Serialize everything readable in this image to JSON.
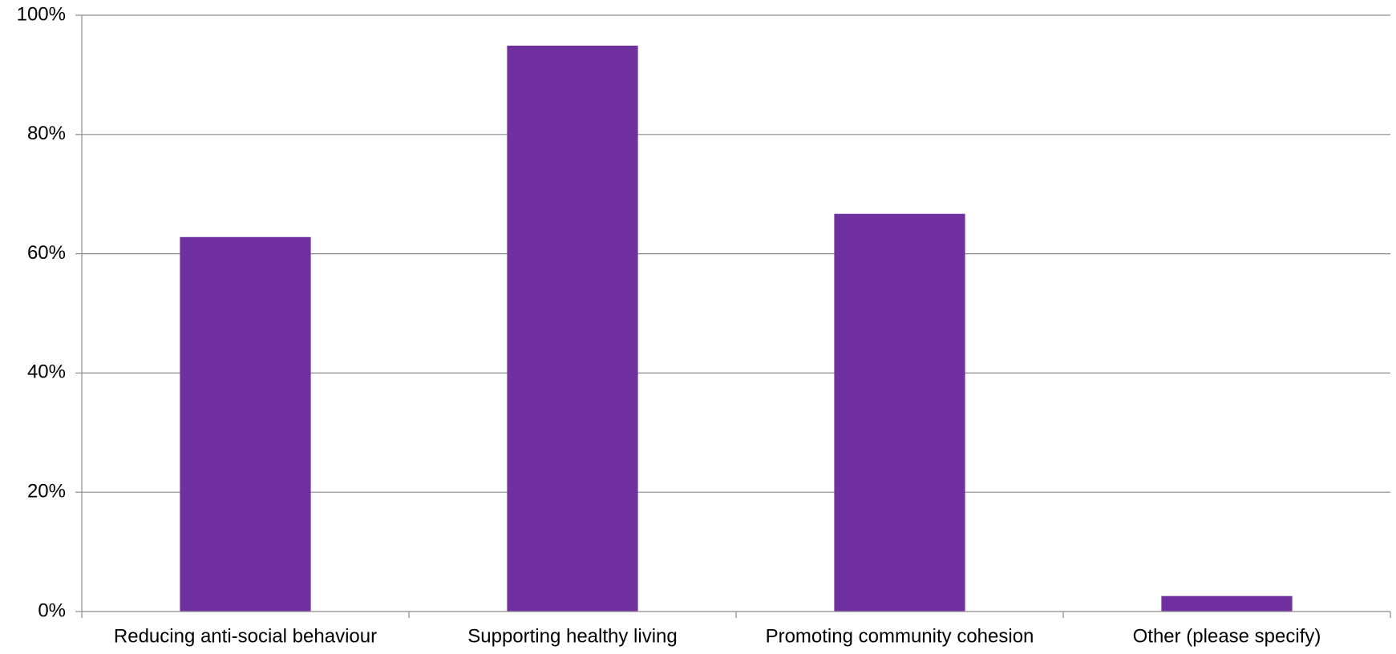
{
  "chart_data": {
    "type": "bar",
    "title": "",
    "xlabel": "",
    "ylabel": "",
    "categories": [
      "Reducing anti-social behaviour",
      "Supporting healthy living",
      "Promoting community cohesion",
      "Other (please specify)"
    ],
    "values": [
      62.8,
      94.9,
      66.7,
      2.6
    ],
    "ylim": [
      0,
      100
    ],
    "yticks": [
      0,
      20,
      40,
      60,
      80,
      100
    ],
    "ytick_labels": [
      "0%",
      "20%",
      "40%",
      "60%",
      "80%",
      "100%"
    ],
    "grid": true,
    "legend": "none",
    "colors": {
      "bar": "#7030A0",
      "grid": "#8C8C8C",
      "axis": "#8C8C8C"
    }
  }
}
